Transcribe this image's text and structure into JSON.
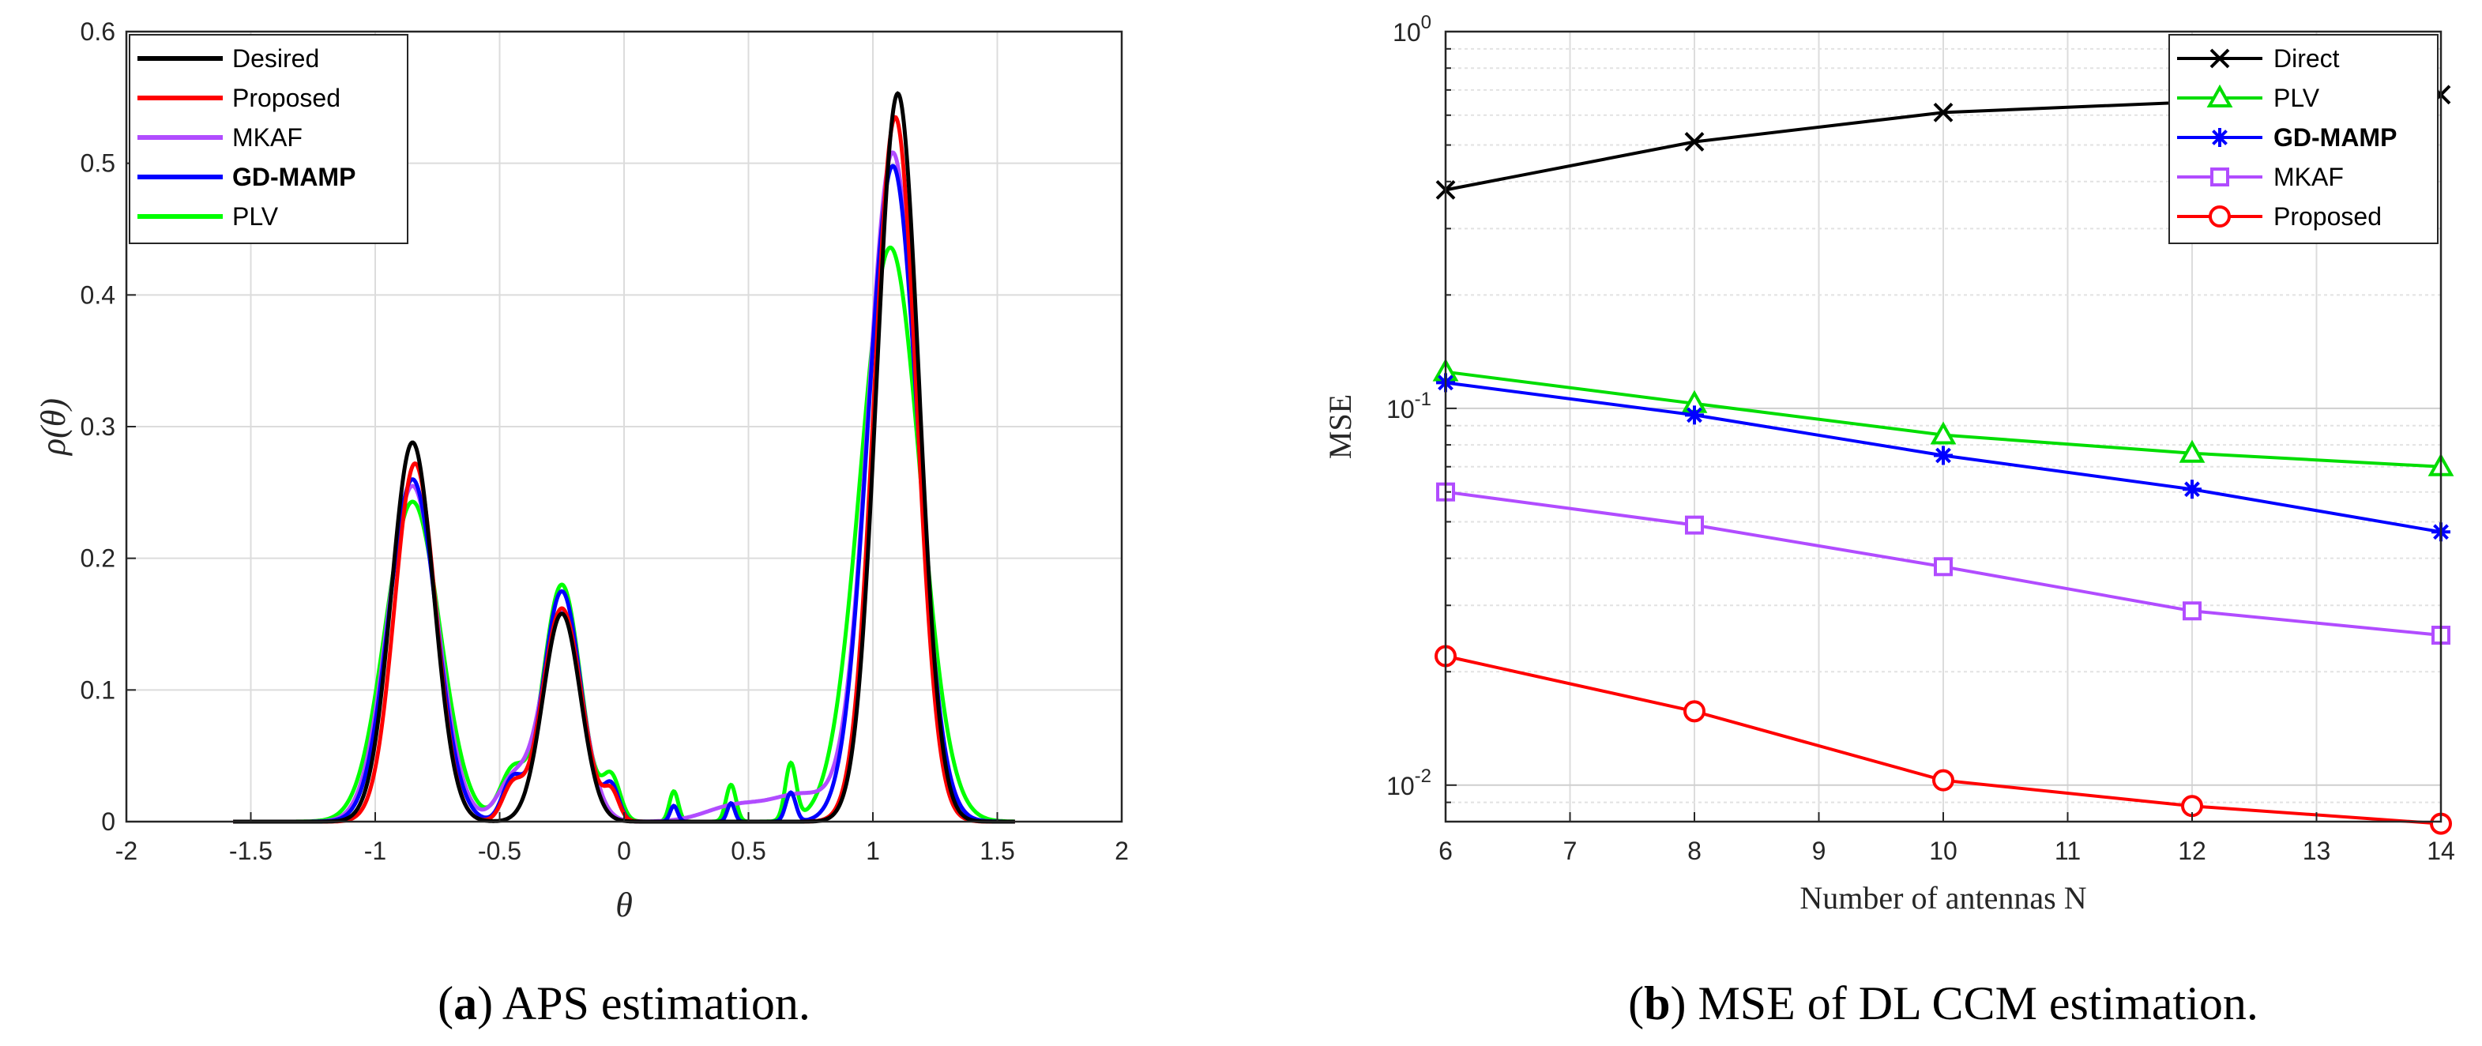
{
  "chart_data": [
    {
      "type": "line",
      "xlabel": "θ",
      "ylabel": "ρ(θ)",
      "xlim": [
        -2,
        2
      ],
      "ylim": [
        0,
        0.6
      ],
      "xticks": [
        "-2",
        "-1.5",
        "-1",
        "-0.5",
        "0",
        "0.5",
        "1",
        "1.5",
        "2"
      ],
      "yticks": [
        "0",
        "0.1",
        "0.2",
        "0.3",
        "0.4",
        "0.5",
        "0.6"
      ],
      "legend_position": "top-left",
      "caption_label": "a",
      "caption_text": " APS estimation.",
      "series": [
        {
          "name": "Desired",
          "color": "#000000",
          "peaks": [
            {
              "center": -0.85,
              "height": 0.288,
              "width": 0.085
            },
            {
              "center": -0.25,
              "height": 0.158,
              "width": 0.075
            },
            {
              "center": 1.1,
              "height": 0.553,
              "width": 0.085
            }
          ]
        },
        {
          "name": "Proposed",
          "color": "#ff0000",
          "peaks": [
            {
              "center": -0.84,
              "height": 0.272,
              "width": 0.082
            },
            {
              "center": -0.25,
              "height": 0.162,
              "width": 0.078
            },
            {
              "center": 1.09,
              "height": 0.535,
              "width": 0.085
            }
          ]
        },
        {
          "name": "MKAF",
          "color": "#b14cff",
          "peaks": [
            {
              "center": -0.85,
              "height": 0.255,
              "width": 0.1
            },
            {
              "center": -0.25,
              "height": 0.16,
              "width": 0.08
            },
            {
              "center": 1.08,
              "height": 0.508,
              "width": 0.1
            }
          ]
        },
        {
          "name": "GD-MAMP",
          "color": "#0000ff",
          "peaks": [
            {
              "center": -0.85,
              "height": 0.26,
              "width": 0.095
            },
            {
              "center": -0.25,
              "height": 0.175,
              "width": 0.075
            },
            {
              "center": 1.08,
              "height": 0.498,
              "width": 0.1
            }
          ]
        },
        {
          "name": "PLV",
          "color": "#00ff00",
          "peaks": [
            {
              "center": -0.85,
              "height": 0.243,
              "width": 0.11
            },
            {
              "center": -0.25,
              "height": 0.18,
              "width": 0.075
            },
            {
              "center": 1.07,
              "height": 0.436,
              "width": 0.12
            }
          ]
        }
      ]
    },
    {
      "type": "line",
      "scale": "log",
      "xlabel": "Number of antennas N",
      "ylabel": "MSE",
      "xlim": [
        6,
        14
      ],
      "ylim": [
        0.008,
        1
      ],
      "x": [
        6,
        8,
        10,
        12,
        14
      ],
      "xticks": [
        "6",
        "7",
        "8",
        "9",
        "10",
        "11",
        "12",
        "13",
        "14"
      ],
      "yticks": [
        {
          "base": "10",
          "exp": "-2"
        },
        {
          "base": "10",
          "exp": "-1"
        },
        {
          "base": "10",
          "exp": "0"
        }
      ],
      "legend_position": "top-right",
      "caption_label": "b",
      "caption_text": " MSE of DL CCM estimation.",
      "series": [
        {
          "name": "Direct",
          "color": "#000000",
          "marker": "x",
          "values": [
            0.38,
            0.51,
            0.61,
            0.65,
            0.68
          ]
        },
        {
          "name": "PLV",
          "color": "#00dd00",
          "marker": "triangle",
          "values": [
            0.125,
            0.103,
            0.085,
            0.076,
            0.07
          ]
        },
        {
          "name": "GD-MAMP",
          "color": "#0000ff",
          "marker": "star",
          "values": [
            0.117,
            0.096,
            0.075,
            0.061,
            0.047
          ]
        },
        {
          "name": "MKAF",
          "color": "#b14cff",
          "marker": "square",
          "values": [
            0.06,
            0.049,
            0.038,
            0.029,
            0.025
          ]
        },
        {
          "name": "Proposed",
          "color": "#ff0000",
          "marker": "circle",
          "values": [
            0.022,
            0.0157,
            0.0103,
            0.0088,
            0.0079
          ]
        }
      ]
    }
  ]
}
